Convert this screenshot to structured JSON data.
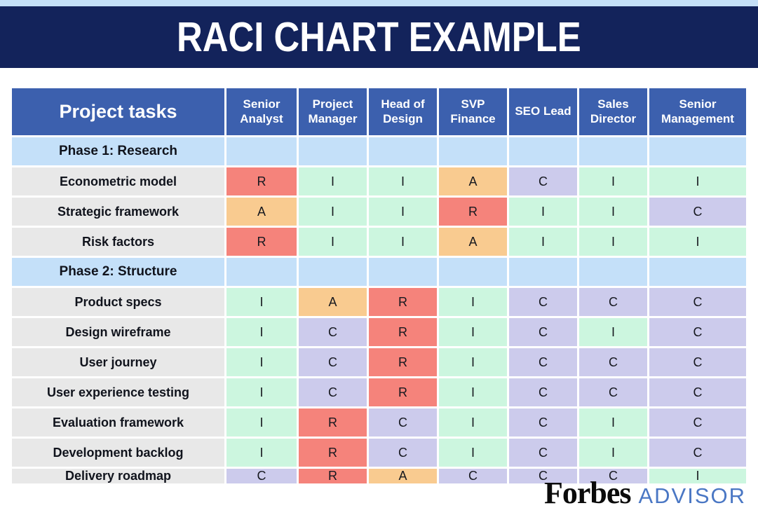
{
  "title": "RACI CHART EXAMPLE",
  "colors": {
    "top_strip": "#c5e0f8",
    "title_navy": "#13235b",
    "header_blue": "#3c60ae",
    "phase_blue": "#c4e0f9",
    "task_label_gray": "#e8e8e8",
    "R": "#f5837b",
    "A": "#f9cb90",
    "C": "#cccbec",
    "I": "#ccf6df",
    "advisor_blue": "#4a77c4"
  },
  "chart_data": {
    "type": "table",
    "title": "RACI CHART EXAMPLE",
    "columns": [
      "Project tasks",
      "Senior Analyst",
      "Project Manager",
      "Head of Design",
      "SVP Finance",
      "SEO Lead",
      "Sales Director",
      "Senior Management"
    ],
    "rows": [
      {
        "type": "phase",
        "label": "Phase 1: Research"
      },
      {
        "type": "task",
        "label": "Econometric model",
        "values": [
          "R",
          "I",
          "I",
          "A",
          "C",
          "I",
          "I"
        ]
      },
      {
        "type": "task",
        "label": "Strategic framework",
        "values": [
          "A",
          "I",
          "I",
          "R",
          "I",
          "I",
          "C"
        ]
      },
      {
        "type": "task",
        "label": "Risk factors",
        "values": [
          "R",
          "I",
          "I",
          "A",
          "I",
          "I",
          "I"
        ]
      },
      {
        "type": "phase",
        "label": "Phase 2: Structure"
      },
      {
        "type": "task",
        "label": "Product specs",
        "values": [
          "I",
          "A",
          "R",
          "I",
          "C",
          "C",
          "C"
        ]
      },
      {
        "type": "task",
        "label": "Design wireframe",
        "values": [
          "I",
          "C",
          "R",
          "I",
          "C",
          "I",
          "C"
        ]
      },
      {
        "type": "task",
        "label": "User journey",
        "values": [
          "I",
          "C",
          "R",
          "I",
          "C",
          "C",
          "C"
        ]
      },
      {
        "type": "task",
        "label": "User experience testing",
        "values": [
          "I",
          "C",
          "R",
          "I",
          "C",
          "C",
          "C"
        ]
      },
      {
        "type": "task",
        "label": "Evaluation framework",
        "values": [
          "I",
          "R",
          "C",
          "I",
          "C",
          "I",
          "C"
        ]
      },
      {
        "type": "task",
        "label": "Development backlog",
        "values": [
          "I",
          "R",
          "C",
          "I",
          "C",
          "I",
          "C"
        ]
      },
      {
        "type": "task",
        "label": "Delivery roadmap",
        "values": [
          "C",
          "R",
          "A",
          "C",
          "C",
          "C",
          "I"
        ]
      }
    ]
  },
  "footer": {
    "brand": "Forbes",
    "suffix": "ADVISOR"
  }
}
